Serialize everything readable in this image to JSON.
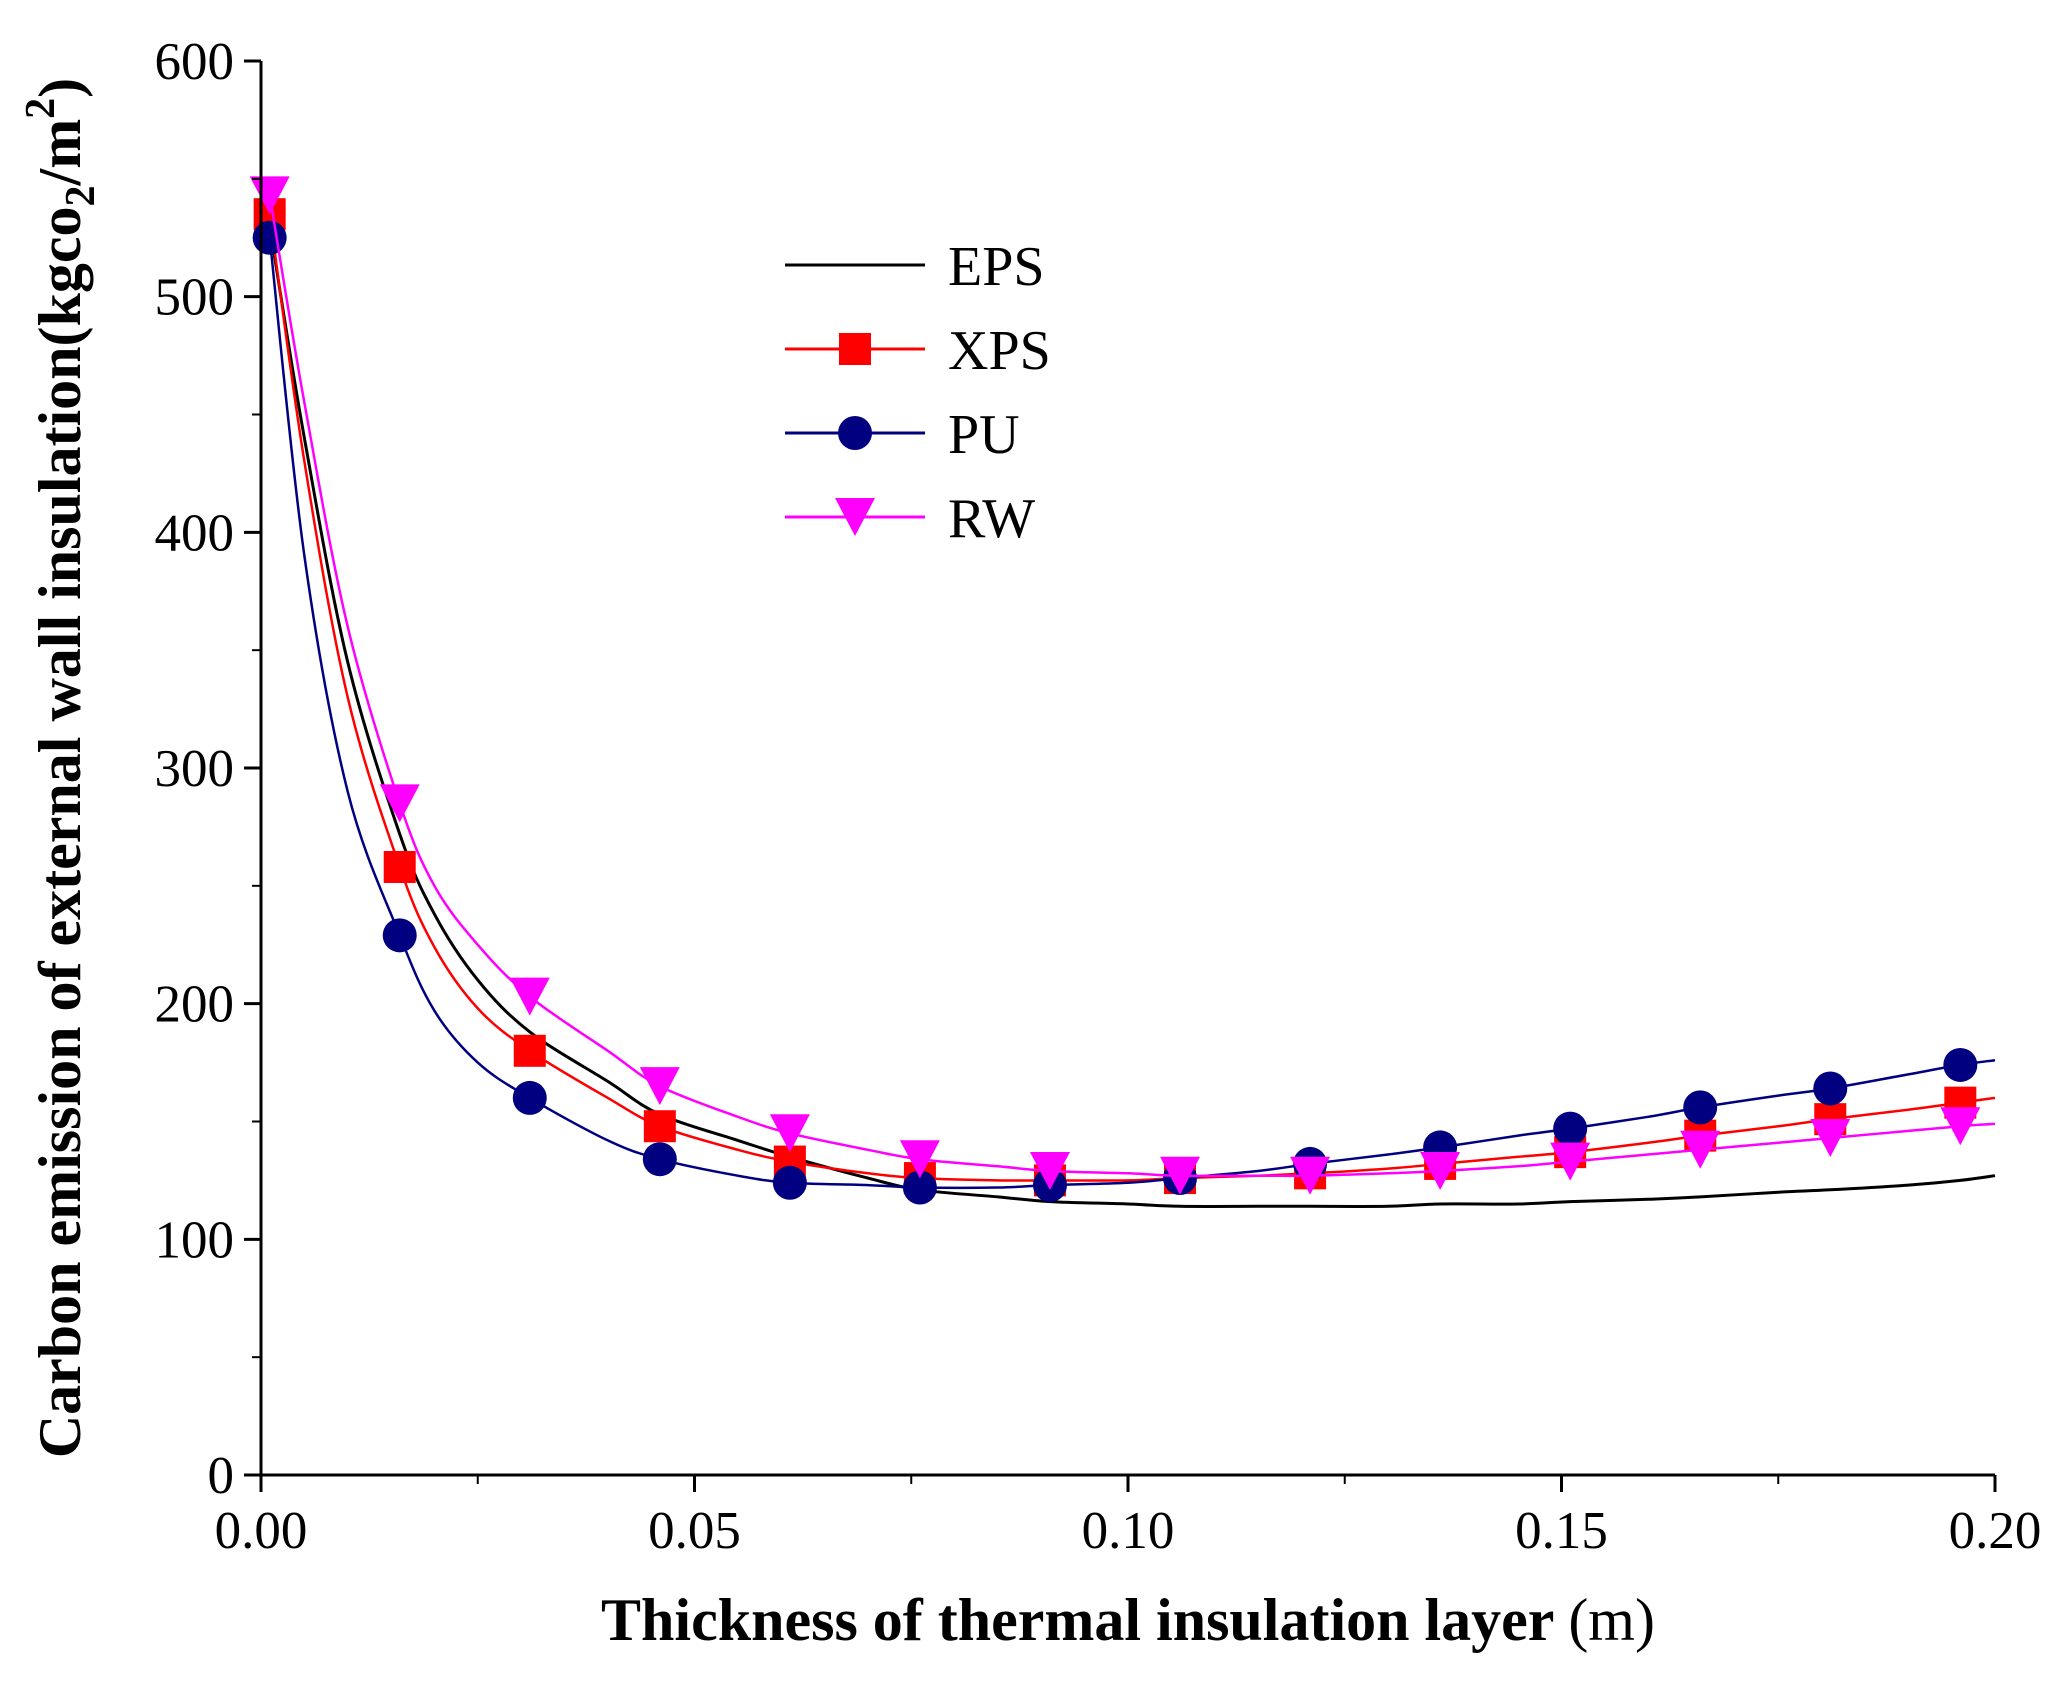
{
  "chart_data": {
    "type": "line",
    "title": "",
    "xlabel": "Thickness of thermal insulation layer",
    "xlabel_unit": "(m)",
    "ylabel": "Carbon emission of external wall insulation(kgco",
    "ylabel_sub": "2",
    "ylabel_mid": "/m",
    "ylabel_sup": "2",
    "ylabel_end": ")",
    "xlim": [
      0,
      0.2
    ],
    "ylim": [
      0,
      600
    ],
    "xticks": [
      0.0,
      0.05,
      0.1,
      0.15,
      0.2
    ],
    "xtick_labels": [
      "0.00",
      "0.05",
      "0.10",
      "0.15",
      "0.20"
    ],
    "yticks": [
      0,
      100,
      200,
      300,
      400,
      500,
      600
    ],
    "ytick_labels": [
      "0",
      "100",
      "200",
      "300",
      "400",
      "500",
      "600"
    ],
    "legend_position": "top-center",
    "grid": false,
    "series": [
      {
        "name": "EPS",
        "color": "#000000",
        "marker": "none",
        "curve_x": [
          0.001,
          0.005,
          0.01,
          0.016,
          0.02,
          0.025,
          0.031,
          0.04,
          0.046,
          0.055,
          0.061,
          0.07,
          0.076,
          0.085,
          0.091,
          0.1,
          0.106,
          0.115,
          0.121,
          0.13,
          0.136,
          0.145,
          0.151,
          0.16,
          0.166,
          0.175,
          0.181,
          0.19,
          0.196,
          0.2
        ],
        "curve_y": [
          530,
          440,
          345,
          272,
          238,
          210,
          188,
          167,
          153,
          142,
          135,
          126,
          121,
          118,
          116,
          115,
          114,
          114,
          114,
          114,
          115,
          115,
          116,
          117,
          118,
          120,
          121,
          123,
          125,
          127
        ],
        "points_x": [],
        "points_y": []
      },
      {
        "name": "XPS",
        "color": "#ff0000",
        "marker": "square",
        "curve_x": [
          0.001,
          0.005,
          0.01,
          0.016,
          0.02,
          0.025,
          0.031,
          0.04,
          0.046,
          0.055,
          0.061,
          0.07,
          0.076,
          0.085,
          0.091,
          0.1,
          0.106,
          0.115,
          0.121,
          0.13,
          0.136,
          0.145,
          0.151,
          0.16,
          0.166,
          0.175,
          0.181,
          0.19,
          0.196,
          0.2
        ],
        "curve_y": [
          535,
          430,
          330,
          258,
          224,
          198,
          180,
          160,
          148,
          138,
          133,
          128,
          126,
          125,
          125,
          125,
          126,
          127,
          128,
          130,
          132,
          135,
          137,
          141,
          144,
          148,
          151,
          155,
          158,
          160
        ],
        "points_x": [
          0.001,
          0.016,
          0.031,
          0.046,
          0.061,
          0.076,
          0.091,
          0.106,
          0.121,
          0.136,
          0.151,
          0.166,
          0.181,
          0.196
        ],
        "points_y": [
          535,
          258,
          180,
          148,
          133,
          126,
          125,
          126,
          128,
          132,
          137,
          144,
          151,
          158
        ]
      },
      {
        "name": "PU",
        "color": "#000080",
        "marker": "circle",
        "curve_x": [
          0.001,
          0.005,
          0.01,
          0.016,
          0.02,
          0.025,
          0.031,
          0.04,
          0.046,
          0.055,
          0.061,
          0.07,
          0.076,
          0.085,
          0.091,
          0.1,
          0.106,
          0.115,
          0.121,
          0.13,
          0.136,
          0.145,
          0.151,
          0.16,
          0.166,
          0.175,
          0.181,
          0.19,
          0.196,
          0.2
        ],
        "curve_y": [
          525,
          390,
          290,
          229,
          197,
          175,
          160,
          142,
          134,
          127,
          124,
          123,
          122,
          122,
          123,
          124,
          126,
          129,
          132,
          136,
          139,
          144,
          147,
          152,
          156,
          161,
          164,
          170,
          174,
          176
        ],
        "points_x": [
          0.001,
          0.016,
          0.031,
          0.046,
          0.061,
          0.076,
          0.091,
          0.106,
          0.121,
          0.136,
          0.151,
          0.166,
          0.181,
          0.196
        ],
        "points_y": [
          525,
          229,
          160,
          134,
          124,
          122,
          123,
          126,
          132,
          139,
          147,
          156,
          164,
          174
        ]
      },
      {
        "name": "RW",
        "color": "#ff00ff",
        "marker": "triangle-down",
        "curve_x": [
          0.001,
          0.005,
          0.01,
          0.016,
          0.02,
          0.025,
          0.031,
          0.04,
          0.046,
          0.055,
          0.061,
          0.07,
          0.076,
          0.085,
          0.091,
          0.1,
          0.106,
          0.115,
          0.121,
          0.13,
          0.136,
          0.145,
          0.151,
          0.16,
          0.166,
          0.175,
          0.181,
          0.19,
          0.196,
          0.2
        ],
        "curve_y": [
          543,
          455,
          360,
          285,
          250,
          225,
          203,
          180,
          165,
          152,
          145,
          138,
          134,
          131,
          129,
          128,
          127,
          127,
          127,
          128,
          129,
          131,
          133,
          136,
          138,
          141,
          143,
          146,
          148,
          149
        ],
        "points_x": [
          0.001,
          0.016,
          0.031,
          0.046,
          0.061,
          0.076,
          0.091,
          0.106,
          0.121,
          0.136,
          0.151,
          0.166,
          0.181,
          0.196
        ],
        "points_y": [
          543,
          285,
          203,
          165,
          145,
          134,
          129,
          127,
          127,
          129,
          133,
          138,
          143,
          148
        ]
      }
    ]
  }
}
